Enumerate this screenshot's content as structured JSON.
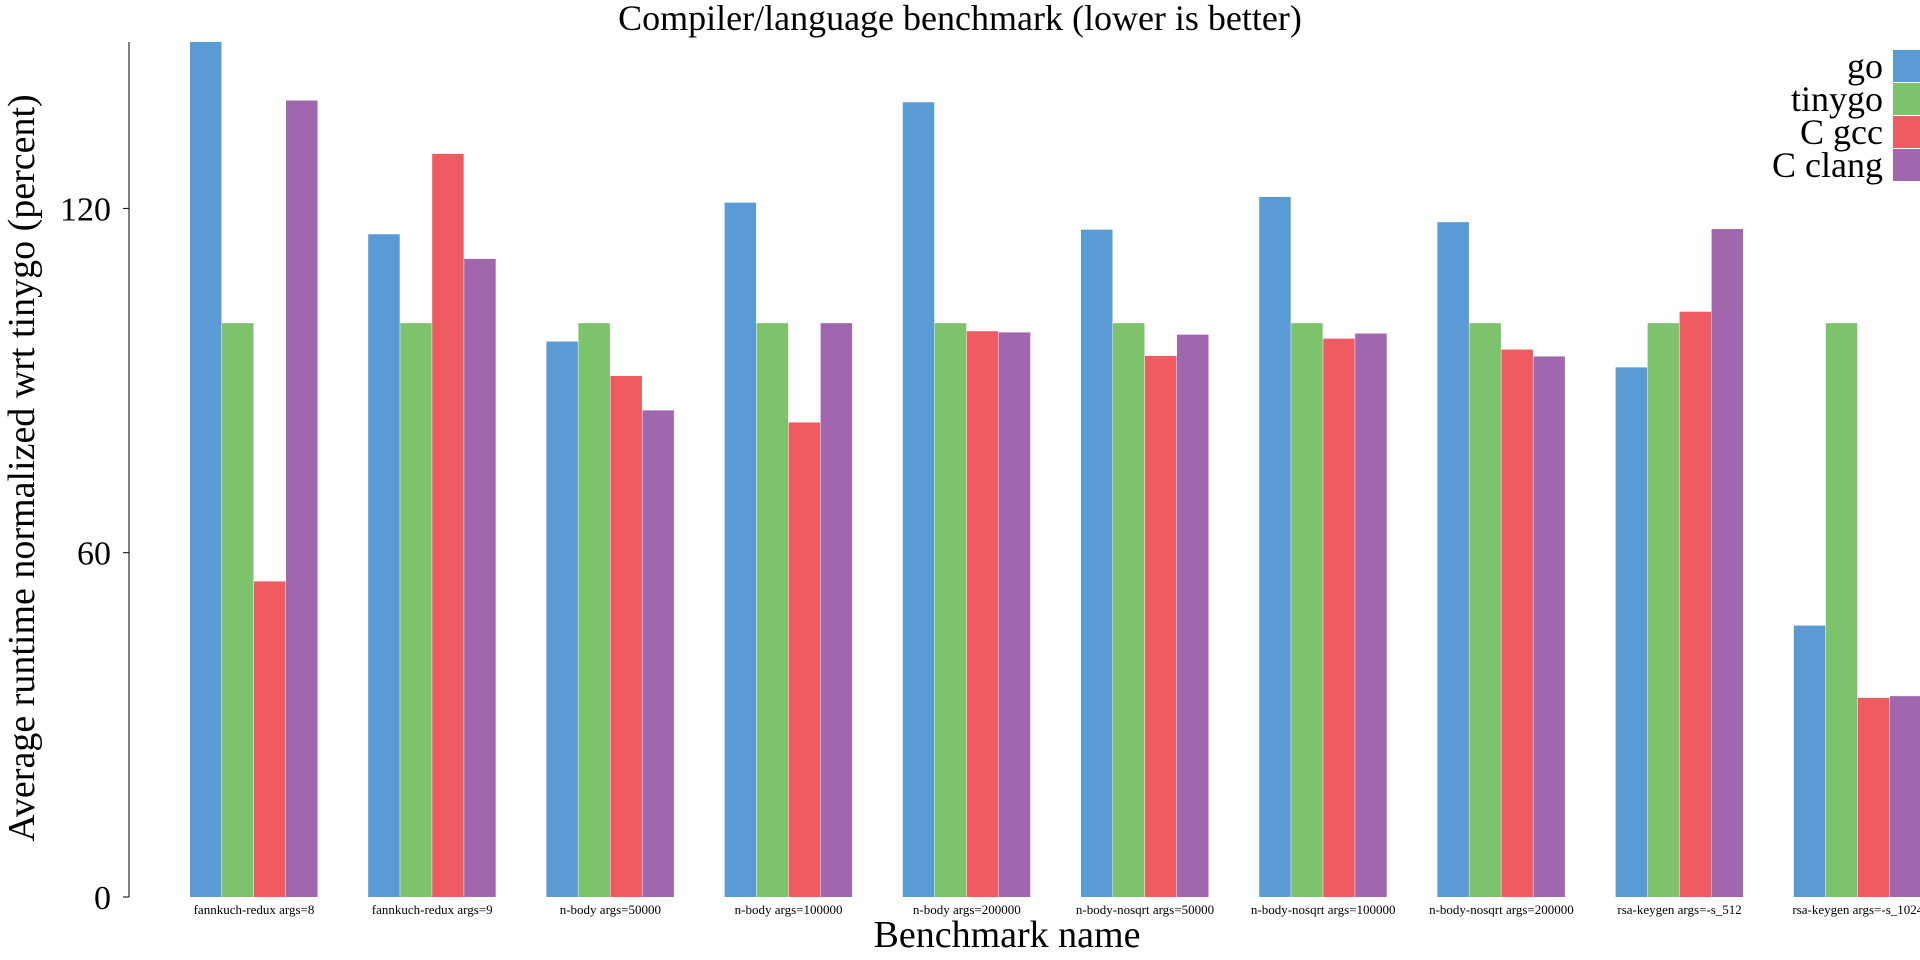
{
  "chart_data": {
    "type": "bar",
    "title": "Compiler/language benchmark (lower is better)",
    "xlabel": "Benchmark name",
    "ylabel": "Average runtime normalized wrt tinygo (percent)",
    "ylim": [
      0,
      149
    ],
    "yticks": [
      0,
      60,
      120
    ],
    "grid": false,
    "legend_position": "top-right",
    "categories": [
      "fannkuch-redux args=8",
      "fannkuch-redux args=9",
      "n-body args=50000",
      "n-body args=100000",
      "n-body args=200000",
      "n-body-nosqrt args=50000",
      "n-body-nosqrt args=100000",
      "n-body-nosqrt args=200000",
      "rsa-keygen args=-s_512",
      "rsa-keygen args=-s_1024"
    ],
    "series": [
      {
        "name": "go",
        "color": "#5b9bd5",
        "values": [
          149,
          115.5,
          96.8,
          121,
          138.5,
          116.3,
          122,
          117.6,
          92.3,
          47.3
        ]
      },
      {
        "name": "tinygo",
        "color": "#7dc36b",
        "values": [
          100,
          100,
          100,
          100,
          100,
          100,
          100,
          100,
          100,
          100
        ]
      },
      {
        "name": "C gcc",
        "color": "#f05b62",
        "values": [
          55,
          129.5,
          90.8,
          82.7,
          98.6,
          94.3,
          97.3,
          95.4,
          102,
          34.7
        ]
      },
      {
        "name": "C clang",
        "color": "#a066ae",
        "values": [
          138.8,
          111.2,
          84.8,
          100,
          98.4,
          98,
          98.2,
          94.2,
          116.4,
          35
        ]
      }
    ]
  }
}
